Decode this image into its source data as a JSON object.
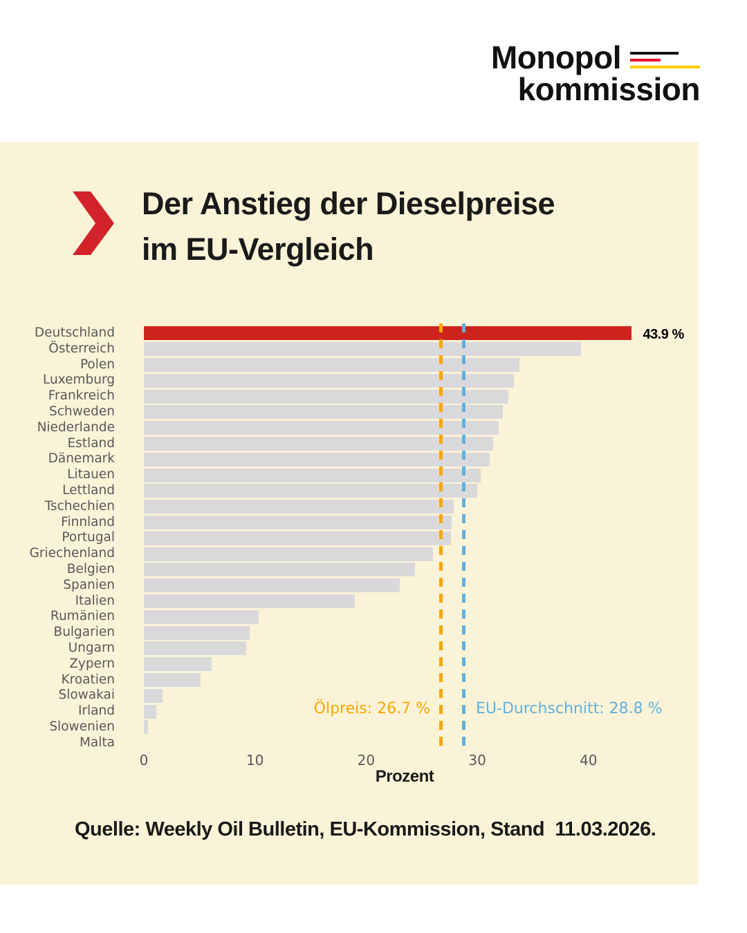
{
  "logo": {
    "line1": "Monopol",
    "line2": "kommission"
  },
  "header": {
    "title_line1": "Der Anstieg der Dieselpreise",
    "title_line2": "im EU-Vergleich"
  },
  "source": "Quelle: Weekly Oil Bulletin, EU-Kommission, Stand  11.03.2026.",
  "colors": {
    "background": "#FFFFFF",
    "panel": "#FBF3D8",
    "bar-gray": "#D9D9DB",
    "bar-red": "#CE241D",
    "chevron-red": "#D2232A",
    "oil-orange": "#F9A602",
    "eu-blue": "#62B0DC",
    "label-gray": "#58585A",
    "text-black": "#1A1A1A",
    "logo-black": "#111111",
    "logo-red": "#E8112D",
    "logo-gold": "#FFCC00"
  },
  "chart_data": {
    "type": "bar",
    "orientation": "horizontal",
    "title": "Der Anstieg der Dieselpreise im EU-Vergleich",
    "xlabel": "Prozent",
    "xticks": [
      0,
      10,
      20,
      30,
      40
    ],
    "xlim": [
      0,
      47
    ],
    "grid": false,
    "categories": [
      "Deutschland",
      "Österreich",
      "Polen",
      "Luxemburg",
      "Frankreich",
      "Schweden",
      "Niederlande",
      "Estland",
      "Dänemark",
      "Litauen",
      "Lettland",
      "Tschechien",
      "Finnland",
      "Portugal",
      "Griechenland",
      "Belgien",
      "Spanien",
      "Italien",
      "Rumänien",
      "Bulgarien",
      "Ungarn",
      "Zypern",
      "Kroatien",
      "Slowakai",
      "Irland",
      "Slowenien",
      "Malta"
    ],
    "values": [
      43.9,
      39.3,
      33.8,
      33.3,
      32.8,
      32.3,
      31.9,
      31.4,
      31.1,
      30.3,
      30.0,
      27.9,
      27.7,
      27.6,
      26.0,
      24.4,
      23.0,
      19.0,
      10.3,
      9.5,
      9.2,
      6.1,
      5.1,
      1.7,
      1.1,
      0.4,
      0.0
    ],
    "highlight_category": "Deutschland",
    "highlight_value_label": "43.9 %",
    "reference_lines": [
      {
        "name": "oil-price",
        "label": "Ölpreis: 26.7 %",
        "value": 26.7,
        "color": "#F9A602"
      },
      {
        "name": "eu-average",
        "label": "EU-Durchschnitt: 28.8 %",
        "value": 28.8,
        "color": "#62B0DC"
      }
    ]
  }
}
